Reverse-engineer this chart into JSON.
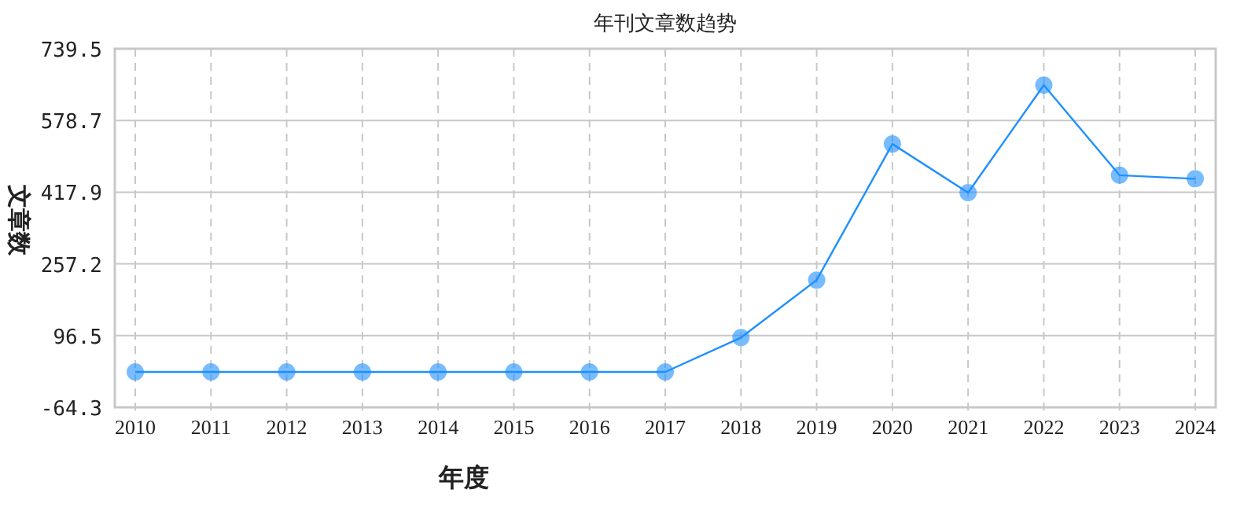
{
  "chart_data": {
    "type": "line",
    "title": "年刊文章数趋势",
    "xlabel": "年度",
    "ylabel": "文章数",
    "categories": [
      "2010",
      "2011",
      "2012",
      "2013",
      "2014",
      "2015",
      "2016",
      "2017",
      "2018",
      "2019",
      "2020",
      "2021",
      "2022",
      "2023",
      "2024"
    ],
    "series": [
      {
        "color": "#1e90ff",
        "values": [
          15,
          15,
          15,
          15,
          15,
          15,
          15,
          15,
          92,
          221,
          526,
          417,
          658,
          456,
          448
        ]
      }
    ],
    "ylim": [
      -64.3,
      739.5
    ],
    "yticks": [
      -64.3,
      96.5,
      257.2,
      417.9,
      578.7,
      739.5
    ],
    "grid": true,
    "marker": "circle",
    "line_style": "solid"
  }
}
